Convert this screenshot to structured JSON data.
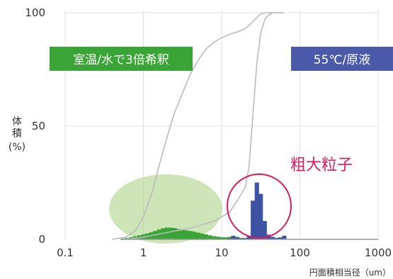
{
  "chart_data": {
    "type": "bar",
    "x_scale": "log",
    "xlim": [
      0.1,
      1000
    ],
    "ylim": [
      0,
      100
    ],
    "grid": true,
    "legend": "none",
    "xlabel": "円面積相当径（um）",
    "ylabel": [
      "体",
      "積",
      "(%)"
    ],
    "x_ticks": [
      {
        "value": 0.1,
        "label": "0.1"
      },
      {
        "value": 1,
        "label": "1"
      },
      {
        "value": 10,
        "label": "10"
      },
      {
        "value": 100,
        "label": "100"
      },
      {
        "value": 1000,
        "label": "1000"
      }
    ],
    "y_ticks": [
      {
        "value": 0,
        "label": "0"
      },
      {
        "value": 50,
        "label": "50"
      },
      {
        "value": 100,
        "label": "100"
      }
    ],
    "series": [
      {
        "label": "室温/水で3倍希釈",
        "type": "bar",
        "color": "#3aa536",
        "points": [
          [
            0.55,
            0.3
          ],
          [
            0.62,
            0.5
          ],
          [
            0.7,
            0.9
          ],
          [
            0.79,
            1.3
          ],
          [
            0.89,
            1.7
          ],
          [
            1.0,
            2.1
          ],
          [
            1.12,
            2.5
          ],
          [
            1.26,
            3.0
          ],
          [
            1.41,
            3.6
          ],
          [
            1.58,
            4.2
          ],
          [
            1.78,
            4.8
          ],
          [
            2.0,
            5.1
          ],
          [
            2.24,
            5.1
          ],
          [
            2.51,
            4.9
          ],
          [
            2.82,
            4.5
          ],
          [
            3.16,
            4.2
          ],
          [
            3.55,
            3.9
          ],
          [
            3.98,
            3.6
          ],
          [
            4.47,
            3.3
          ],
          [
            5.01,
            2.9
          ],
          [
            5.62,
            2.5
          ],
          [
            6.31,
            2.1
          ],
          [
            7.08,
            1.7
          ],
          [
            7.94,
            1.3
          ],
          [
            8.91,
            1.1
          ],
          [
            10.0,
            0.9
          ],
          [
            11.2,
            0.8
          ],
          [
            12.6,
            1.0
          ],
          [
            14.1,
            1.4
          ],
          [
            15.8,
            1.0
          ],
          [
            17.8,
            0.6
          ],
          [
            20.0,
            0.5
          ],
          [
            22.4,
            0.6
          ],
          [
            25.1,
            1.5
          ],
          [
            28.2,
            5.5
          ],
          [
            31.6,
            8.0
          ],
          [
            35.5,
            2.5
          ],
          [
            39.8,
            0.6
          ]
        ]
      },
      {
        "label": "55℃/原液",
        "type": "bar",
        "color": "#3e53a4",
        "points": [
          [
            12.6,
            0.4
          ],
          [
            14.1,
            1.5
          ],
          [
            15.8,
            0.8
          ],
          [
            17.8,
            0.3
          ],
          [
            20.0,
            0.4
          ],
          [
            22.4,
            1.2
          ],
          [
            25.1,
            17.0
          ],
          [
            28.2,
            25.0
          ],
          [
            31.6,
            20.0
          ],
          [
            35.5,
            8.0
          ],
          [
            39.8,
            2.0
          ],
          [
            44.7,
            1.0
          ],
          [
            50.1,
            0.6
          ],
          [
            56.2,
            0.8
          ],
          [
            63.1,
            1.5
          ]
        ]
      },
      {
        "label": "室温/水で3倍希釈",
        "type": "cumulative-line",
        "color": "#bbbbbb",
        "points": [
          [
            0.4,
            0
          ],
          [
            0.6,
            1
          ],
          [
            0.8,
            4
          ],
          [
            1.0,
            10
          ],
          [
            1.3,
            21
          ],
          [
            1.6,
            33
          ],
          [
            2.0,
            45
          ],
          [
            2.5,
            56
          ],
          [
            3.2,
            65
          ],
          [
            4.0,
            73
          ],
          [
            5.0,
            79
          ],
          [
            6.3,
            84
          ],
          [
            8.0,
            87
          ],
          [
            10.0,
            89
          ],
          [
            12.6,
            90.5
          ],
          [
            15.8,
            91.5
          ],
          [
            20.0,
            93
          ],
          [
            25.1,
            96
          ],
          [
            28.2,
            98
          ],
          [
            31.6,
            99.5
          ],
          [
            35.5,
            100
          ],
          [
            63.1,
            100
          ]
        ]
      },
      {
        "label": "55℃/原液",
        "type": "cumulative-line",
        "color": "#bbbbbb",
        "points": [
          [
            0.6,
            0
          ],
          [
            1.0,
            1
          ],
          [
            2.0,
            3
          ],
          [
            4.0,
            5
          ],
          [
            8.0,
            8
          ],
          [
            12.6,
            12
          ],
          [
            15.8,
            17
          ],
          [
            20.0,
            23
          ],
          [
            22.4,
            32
          ],
          [
            25.1,
            55
          ],
          [
            28.2,
            78
          ],
          [
            31.6,
            91
          ],
          [
            35.5,
            97
          ],
          [
            39.8,
            99
          ],
          [
            44.7,
            100
          ],
          [
            63.1,
            100
          ]
        ]
      }
    ],
    "annotations": [
      {
        "text": "室温/水で3倍希釈",
        "bg": "#3aa536",
        "color": "#ffffff"
      },
      {
        "text": "55℃/原液",
        "bg": "#4b5aa8",
        "color": "#ffffff"
      },
      {
        "text": "粗大粒子",
        "color": "#d81b60"
      }
    ]
  }
}
